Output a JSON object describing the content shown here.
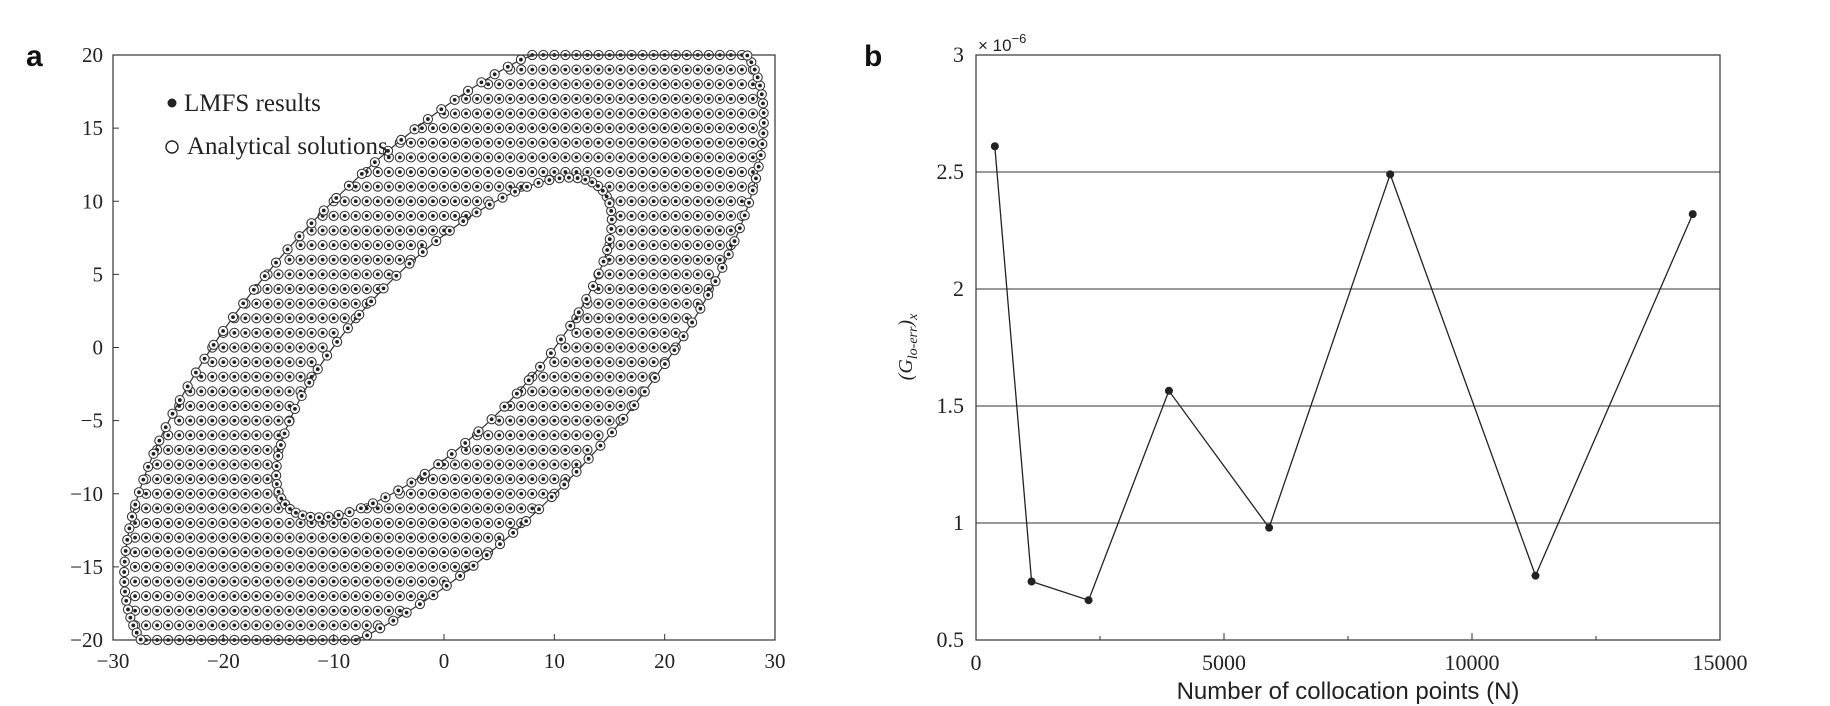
{
  "chart_data": [
    {
      "panel": "a",
      "type": "scatter",
      "xlim": [
        -30,
        30
      ],
      "ylim": [
        -20,
        20
      ],
      "x_ticks": [
        "−30",
        "−20",
        "−10",
        "0",
        "10",
        "20",
        "30"
      ],
      "y_ticks": [
        "20",
        "15",
        "10",
        "5",
        "0",
        "−5",
        "−10",
        "−15",
        "−20"
      ],
      "legend_placement": "top-left",
      "series": [
        {
          "name": "LMFS results",
          "marker": "filled-dot"
        },
        {
          "name": "Analytical solutions",
          "marker": "open-circle"
        }
      ],
      "domain": {
        "shape": "tilted annulus (ellipse ring) rotated about 35°",
        "center": [
          0,
          0
        ],
        "outer_semi_axes": [
          34,
          14
        ],
        "inner_semi_axes": [
          18,
          6.5
        ],
        "rotation_deg": 35
      },
      "grid_spacing": 1
    },
    {
      "panel": "b",
      "type": "line",
      "xlabel": "Number of collocation points (N)",
      "ylabel": "(G",
      "ylabel_sub": "lo-err",
      "ylabel_close": ")",
      "ylabel_sub2": "x",
      "multiplier": "× 10",
      "multiplier_exp": "−6",
      "xlim": [
        0,
        15000
      ],
      "ylim": [
        0.5,
        3
      ],
      "x_ticks": [
        "0",
        "5000",
        "10000",
        "15000"
      ],
      "y_ticks": [
        "3",
        "2.5",
        "2",
        "1.5",
        "1",
        "0.5"
      ],
      "grid": "horizontal",
      "x": [
        380,
        1120,
        2270,
        3890,
        5910,
        8350,
        11280,
        14450
      ],
      "values": [
        2.61,
        0.75,
        0.67,
        1.565,
        0.98,
        2.49,
        0.775,
        2.32
      ]
    }
  ]
}
